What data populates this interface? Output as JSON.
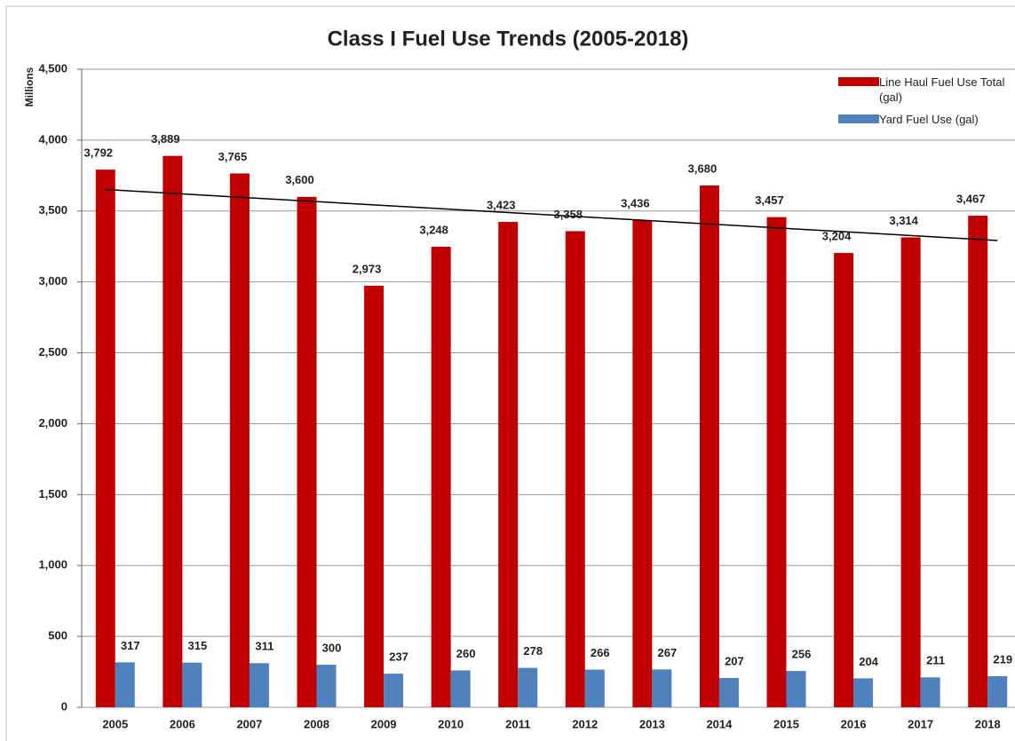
{
  "chart_data": {
    "type": "bar",
    "title": "Class I Fuel Use Trends (2005-2018)",
    "y_axis_label": "Millions",
    "categories": [
      "2005",
      "2006",
      "2007",
      "2008",
      "2009",
      "2010",
      "2011",
      "2012",
      "2013",
      "2014",
      "2015",
      "2016",
      "2017",
      "2018"
    ],
    "series": [
      {
        "name": "Line Haul Fuel Use Total (gal)",
        "color": "#c00000",
        "values": [
          3792,
          3889,
          3765,
          3600,
          2973,
          3248,
          3423,
          3358,
          3436,
          3680,
          3457,
          3204,
          3314,
          3467
        ],
        "value_labels": [
          "3,792",
          "3,889",
          "3,765",
          "3,600",
          "2,973",
          "3,248",
          "3,423",
          "3,358",
          "3,436",
          "3,680",
          "3,457",
          "3,204",
          "3,314",
          "3,467"
        ],
        "trendline": true
      },
      {
        "name": "Yard Fuel Use (gal)",
        "color": "#4f81bd",
        "values": [
          317,
          315,
          311,
          300,
          237,
          260,
          278,
          266,
          267,
          207,
          256,
          204,
          211,
          219
        ]
      }
    ],
    "ylim": [
      0,
      4500
    ],
    "yticks": [
      0,
      500,
      {
        "value": 1000,
        "label": "1,000"
      },
      {
        "value": 1500,
        "label": "1,500"
      },
      {
        "value": 2000,
        "label": "2,000"
      },
      {
        "value": 2500,
        "label": "2,500"
      },
      {
        "value": 3000,
        "label": "3,000"
      },
      {
        "value": 3500,
        "label": "3,500"
      },
      {
        "value": 4000,
        "label": "4,000"
      },
      {
        "value": 4500,
        "label": "4,500"
      }
    ],
    "grid": true,
    "legend": "top-right"
  }
}
